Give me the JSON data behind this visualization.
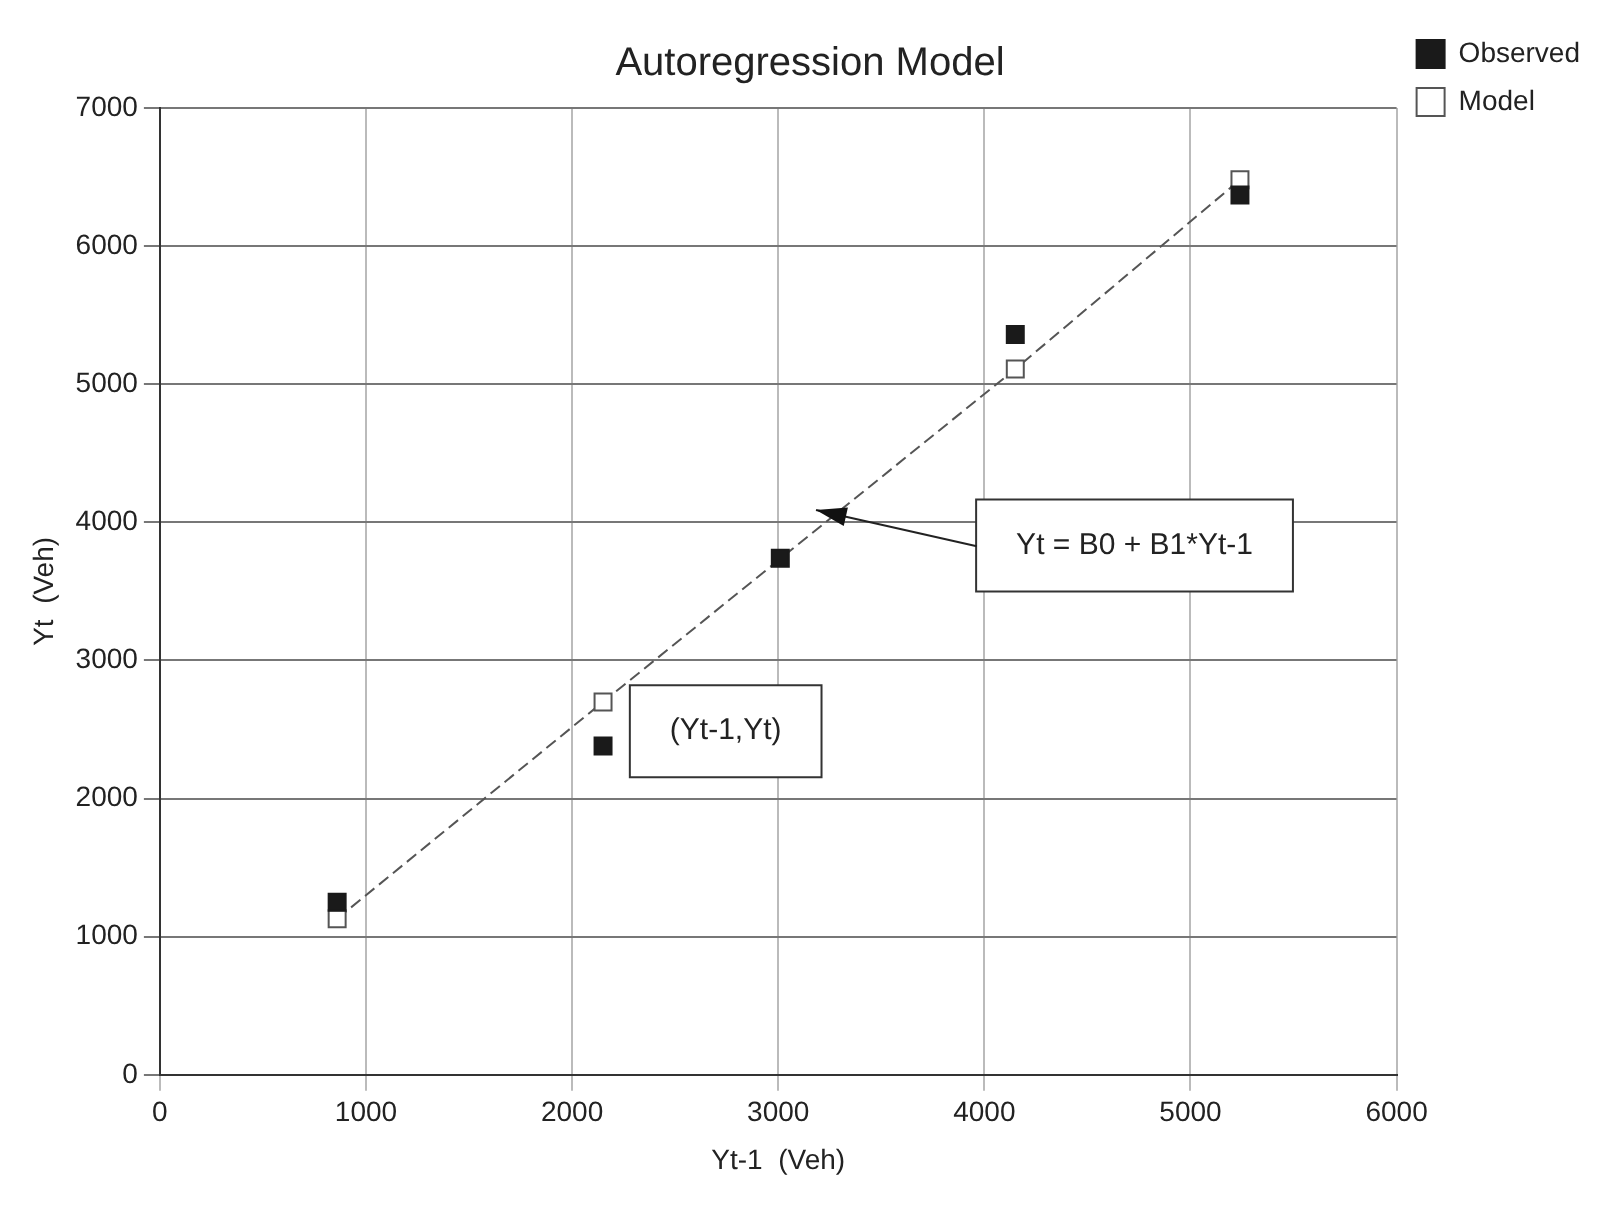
{
  "chart_data": {
    "type": "scatter",
    "title": "Autoregression Model",
    "xlabel": "Yt-1  (Veh)",
    "ylabel": "Yt  (Veh)",
    "series": [
      {
        "name": "Observed",
        "color": "#1a1a1a",
        "marker": "square",
        "x": [
          860,
          2150,
          3010,
          4150,
          5240
        ],
        "values": [
          1250,
          2380,
          3740,
          5360,
          6370
        ]
      },
      {
        "name": "Model",
        "type": "line",
        "color": "#555555",
        "marker": "square",
        "line_style": "dashed",
        "x": [
          860,
          2150,
          3010,
          4150,
          5240
        ],
        "values": [
          1130,
          2700,
          null,
          5110,
          6480
        ]
      }
    ],
    "annotations": [
      "Yt = B0 + B1*Yt-1",
      "(Yt-1,Yt)"
    ],
    "xlim": [
      0,
      6000
    ],
    "xticks": [
      0,
      1000,
      2000,
      3000,
      4000,
      5000,
      6000
    ],
    "ylim": [
      0,
      7000
    ],
    "yticks": [
      0,
      1000,
      2000,
      3000,
      4000,
      5000,
      6000,
      7000
    ],
    "grid": true,
    "legend": "top right"
  }
}
